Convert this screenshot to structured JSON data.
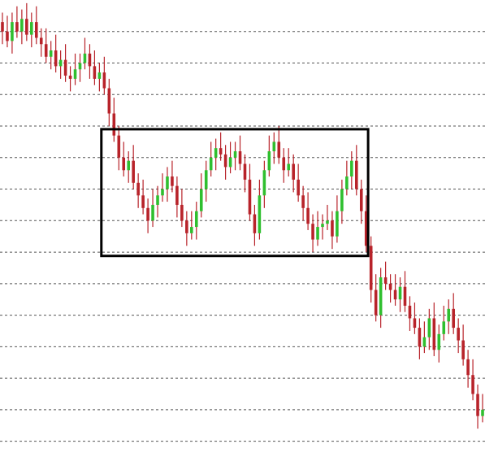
{
  "chart_data": {
    "type": "candlestick",
    "up_color": "#2fbf2f",
    "down_color": "#b8232a",
    "grid": true,
    "xlim": [
      -0.5,
      99.5
    ],
    "ylim": [
      -0.5,
      14
    ],
    "yticks": [
      0,
      1,
      2,
      3,
      4,
      5,
      6,
      7,
      8,
      9,
      10,
      11,
      12,
      13
    ],
    "box": {
      "x": [
        20.4,
        75.4
      ],
      "y": [
        5.88,
        9.9
      ],
      "color": "#000000"
    },
    "open": [
      13.3,
      13.0,
      12.7,
      13.3,
      13.0,
      13.4,
      12.9,
      13.3,
      12.8,
      12.6,
      12.2,
      12.4,
      11.9,
      12.1,
      11.6,
      11.5,
      11.8,
      12.0,
      12.3,
      11.9,
      11.5,
      11.7,
      11.2,
      10.4,
      9.7,
      9.0,
      8.6,
      8.9,
      8.2,
      7.8,
      7.4,
      7.0,
      7.5,
      7.8,
      8.0,
      8.4,
      8.1,
      7.5,
      7.0,
      6.6,
      6.8,
      7.3,
      8.0,
      8.6,
      9.0,
      9.3,
      9.1,
      8.7,
      9.0,
      9.2,
      8.8,
      8.3,
      7.2,
      6.6,
      7.8,
      8.6,
      9.2,
      9.5,
      9.0,
      8.6,
      8.8,
      8.3,
      7.8,
      7.4,
      6.9,
      6.4,
      6.8,
      6.9,
      7.0,
      6.5,
      7.3,
      8.0,
      8.4,
      8.9,
      8.0,
      7.3,
      6.2,
      4.8,
      4.0,
      5.2,
      5.0,
      4.8,
      4.5,
      4.9,
      4.3,
      3.9,
      3.6,
      3.0,
      3.3,
      3.9,
      2.9,
      3.4,
      3.8,
      4.2,
      3.6,
      3.2,
      2.6,
      2.1,
      1.5,
      0.8
    ],
    "high": [
      13.6,
      13.5,
      13.6,
      13.8,
      13.7,
      13.9,
      13.6,
      13.8,
      13.1,
      13.1,
      12.7,
      12.9,
      12.4,
      12.6,
      11.9,
      12.3,
      12.3,
      12.8,
      12.6,
      12.4,
      12.0,
      12.2,
      11.5,
      10.9,
      10.0,
      9.5,
      9.2,
      9.4,
      8.5,
      8.3,
      7.7,
      8.0,
      8.1,
      8.5,
      8.7,
      8.9,
      8.4,
      8.0,
      7.3,
      7.3,
      7.6,
      8.5,
      8.9,
      9.5,
      9.6,
      9.8,
      9.4,
      9.5,
      9.5,
      9.7,
      9.1,
      8.8,
      7.5,
      8.3,
      8.9,
      9.7,
      9.8,
      10.0,
      9.3,
      9.3,
      9.1,
      8.8,
      8.1,
      7.9,
      7.2,
      7.3,
      7.2,
      7.5,
      7.3,
      7.8,
      8.3,
      8.9,
      9.2,
      9.4,
      8.3,
      7.8,
      6.5,
      5.3,
      5.5,
      5.7,
      5.3,
      5.3,
      5.2,
      5.4,
      4.6,
      4.4,
      3.9,
      3.8,
      4.2,
      4.4,
      3.7,
      4.3,
      4.5,
      4.7,
      3.9,
      3.7,
      2.9,
      2.6,
      1.8,
      1.5
    ],
    "low": [
      12.6,
      12.5,
      12.3,
      12.8,
      12.6,
      12.7,
      12.5,
      12.6,
      12.2,
      12.0,
      11.8,
      11.7,
      11.5,
      11.4,
      11.1,
      11.3,
      11.4,
      11.8,
      11.5,
      11.3,
      11.1,
      11.0,
      10.0,
      9.5,
      8.6,
      8.4,
      8.2,
      8.0,
      7.4,
      7.2,
      6.6,
      6.8,
      7.1,
      7.6,
      7.6,
      7.9,
      7.1,
      6.8,
      6.2,
      6.4,
      6.4,
      7.1,
      7.6,
      8.4,
      8.6,
      8.9,
      8.3,
      8.5,
      8.6,
      8.6,
      7.9,
      7.0,
      6.2,
      6.4,
      7.4,
      8.4,
      8.8,
      8.8,
      8.2,
      8.4,
      7.9,
      7.6,
      7.0,
      6.7,
      6.0,
      6.2,
      6.4,
      6.7,
      6.1,
      6.3,
      6.9,
      7.8,
      8.0,
      7.8,
      6.9,
      6.0,
      4.4,
      3.8,
      3.6,
      4.8,
      4.4,
      4.3,
      4.1,
      4.1,
      3.5,
      3.4,
      2.6,
      2.8,
      2.9,
      2.7,
      2.5,
      3.2,
      3.4,
      3.4,
      2.8,
      2.4,
      1.7,
      1.3,
      0.4,
      0.6
    ],
    "close": [
      13.0,
      12.7,
      13.3,
      13.0,
      13.4,
      12.9,
      13.3,
      12.8,
      12.6,
      12.2,
      12.4,
      11.9,
      12.1,
      11.6,
      11.5,
      11.8,
      12.0,
      12.3,
      11.9,
      11.5,
      11.7,
      11.2,
      10.4,
      9.7,
      9.0,
      8.6,
      8.9,
      8.2,
      7.8,
      7.4,
      7.0,
      7.5,
      7.8,
      8.0,
      8.4,
      8.1,
      7.5,
      7.0,
      6.6,
      6.8,
      7.3,
      8.0,
      8.6,
      9.0,
      9.3,
      9.1,
      8.7,
      9.0,
      9.2,
      8.8,
      8.3,
      7.2,
      6.6,
      7.8,
      8.6,
      9.2,
      9.5,
      9.0,
      8.6,
      8.8,
      8.3,
      7.8,
      7.4,
      6.9,
      6.4,
      6.8,
      6.9,
      7.0,
      6.5,
      7.3,
      8.0,
      8.4,
      8.9,
      8.0,
      7.3,
      6.2,
      4.8,
      4.0,
      5.2,
      5.0,
      4.8,
      4.5,
      4.9,
      4.3,
      3.9,
      3.6,
      3.0,
      3.3,
      3.9,
      2.9,
      3.4,
      3.8,
      4.2,
      3.6,
      3.2,
      2.6,
      2.1,
      1.5,
      0.8,
      1.0
    ]
  }
}
